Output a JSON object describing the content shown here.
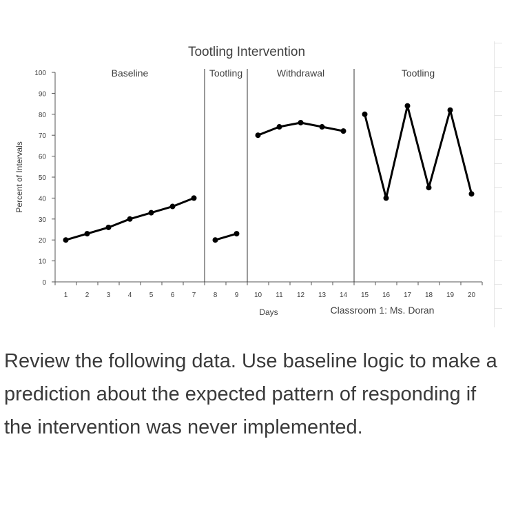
{
  "chart_data": {
    "type": "line",
    "title": "Tootling Intervention",
    "ylabel": "Percent of Intervals",
    "xlabel": "Days",
    "footer_label": "Classroom 1: Ms. Doran",
    "ylim": [
      0,
      100
    ],
    "yticks": [
      0,
      10,
      20,
      30,
      40,
      50,
      60,
      70,
      80,
      90,
      100
    ],
    "xticks": [
      1,
      2,
      3,
      4,
      5,
      6,
      7,
      8,
      9,
      10,
      11,
      12,
      13,
      14,
      15,
      16,
      17,
      18,
      19,
      20
    ],
    "grid": false,
    "phase_changes_after_day": [
      7,
      9,
      14
    ],
    "phases": [
      {
        "label": "Baseline",
        "x": [
          1,
          2,
          3,
          4,
          5,
          6,
          7
        ],
        "y": [
          20,
          23,
          26,
          30,
          33,
          36,
          40
        ]
      },
      {
        "label": "Tootling",
        "x": [
          8,
          9
        ],
        "y": [
          20,
          23
        ]
      },
      {
        "label": "Withdrawal",
        "x": [
          10,
          11,
          12,
          13,
          14
        ],
        "y": [
          70,
          74,
          76,
          74,
          72
        ]
      },
      {
        "label": "Tootling",
        "x": [
          15,
          16,
          17,
          18,
          19,
          20
        ],
        "y": [
          80,
          40,
          84,
          45,
          82,
          42
        ]
      }
    ]
  },
  "question": {
    "text": "Review the following data. Use baseline logic to make a prediction about the expected pattern of responding if the intervention was never implemented."
  },
  "colors": {
    "series": "#000000",
    "axis": "#555555",
    "text": "#404040"
  }
}
